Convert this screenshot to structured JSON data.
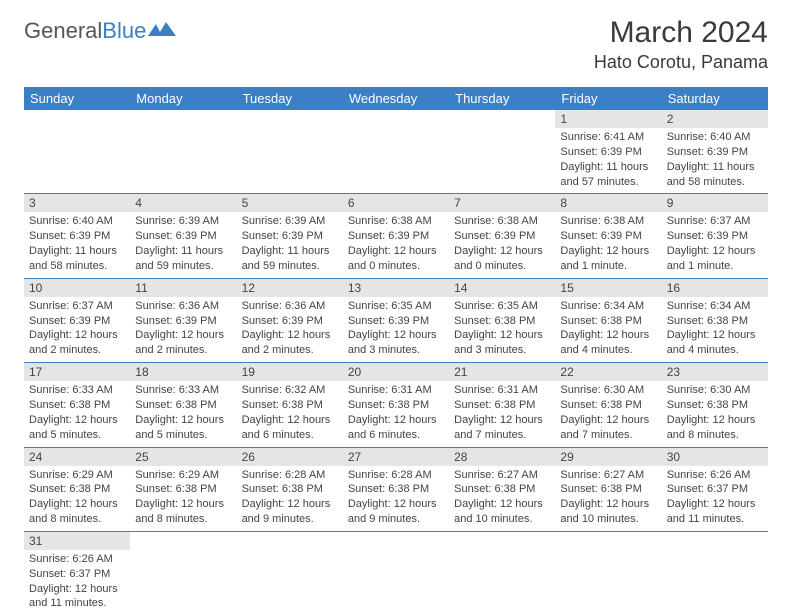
{
  "logo": {
    "text1": "General",
    "text2": "Blue"
  },
  "title": "March 2024",
  "location": "Hato Corotu, Panama",
  "colors": {
    "header_bg": "#3b7fc4",
    "header_text": "#ffffff",
    "daynum_bg": "#e5e5e5",
    "border": "#3b7fc4",
    "text": "#444444"
  },
  "weekdays": [
    "Sunday",
    "Monday",
    "Tuesday",
    "Wednesday",
    "Thursday",
    "Friday",
    "Saturday"
  ],
  "weeks": [
    [
      null,
      null,
      null,
      null,
      null,
      {
        "n": "1",
        "sr": "Sunrise: 6:41 AM",
        "ss": "Sunset: 6:39 PM",
        "dl": "Daylight: 11 hours and 57 minutes."
      },
      {
        "n": "2",
        "sr": "Sunrise: 6:40 AM",
        "ss": "Sunset: 6:39 PM",
        "dl": "Daylight: 11 hours and 58 minutes."
      }
    ],
    [
      {
        "n": "3",
        "sr": "Sunrise: 6:40 AM",
        "ss": "Sunset: 6:39 PM",
        "dl": "Daylight: 11 hours and 58 minutes."
      },
      {
        "n": "4",
        "sr": "Sunrise: 6:39 AM",
        "ss": "Sunset: 6:39 PM",
        "dl": "Daylight: 11 hours and 59 minutes."
      },
      {
        "n": "5",
        "sr": "Sunrise: 6:39 AM",
        "ss": "Sunset: 6:39 PM",
        "dl": "Daylight: 11 hours and 59 minutes."
      },
      {
        "n": "6",
        "sr": "Sunrise: 6:38 AM",
        "ss": "Sunset: 6:39 PM",
        "dl": "Daylight: 12 hours and 0 minutes."
      },
      {
        "n": "7",
        "sr": "Sunrise: 6:38 AM",
        "ss": "Sunset: 6:39 PM",
        "dl": "Daylight: 12 hours and 0 minutes."
      },
      {
        "n": "8",
        "sr": "Sunrise: 6:38 AM",
        "ss": "Sunset: 6:39 PM",
        "dl": "Daylight: 12 hours and 1 minute."
      },
      {
        "n": "9",
        "sr": "Sunrise: 6:37 AM",
        "ss": "Sunset: 6:39 PM",
        "dl": "Daylight: 12 hours and 1 minute."
      }
    ],
    [
      {
        "n": "10",
        "sr": "Sunrise: 6:37 AM",
        "ss": "Sunset: 6:39 PM",
        "dl": "Daylight: 12 hours and 2 minutes."
      },
      {
        "n": "11",
        "sr": "Sunrise: 6:36 AM",
        "ss": "Sunset: 6:39 PM",
        "dl": "Daylight: 12 hours and 2 minutes."
      },
      {
        "n": "12",
        "sr": "Sunrise: 6:36 AM",
        "ss": "Sunset: 6:39 PM",
        "dl": "Daylight: 12 hours and 2 minutes."
      },
      {
        "n": "13",
        "sr": "Sunrise: 6:35 AM",
        "ss": "Sunset: 6:39 PM",
        "dl": "Daylight: 12 hours and 3 minutes."
      },
      {
        "n": "14",
        "sr": "Sunrise: 6:35 AM",
        "ss": "Sunset: 6:38 PM",
        "dl": "Daylight: 12 hours and 3 minutes."
      },
      {
        "n": "15",
        "sr": "Sunrise: 6:34 AM",
        "ss": "Sunset: 6:38 PM",
        "dl": "Daylight: 12 hours and 4 minutes."
      },
      {
        "n": "16",
        "sr": "Sunrise: 6:34 AM",
        "ss": "Sunset: 6:38 PM",
        "dl": "Daylight: 12 hours and 4 minutes."
      }
    ],
    [
      {
        "n": "17",
        "sr": "Sunrise: 6:33 AM",
        "ss": "Sunset: 6:38 PM",
        "dl": "Daylight: 12 hours and 5 minutes."
      },
      {
        "n": "18",
        "sr": "Sunrise: 6:33 AM",
        "ss": "Sunset: 6:38 PM",
        "dl": "Daylight: 12 hours and 5 minutes."
      },
      {
        "n": "19",
        "sr": "Sunrise: 6:32 AM",
        "ss": "Sunset: 6:38 PM",
        "dl": "Daylight: 12 hours and 6 minutes."
      },
      {
        "n": "20",
        "sr": "Sunrise: 6:31 AM",
        "ss": "Sunset: 6:38 PM",
        "dl": "Daylight: 12 hours and 6 minutes."
      },
      {
        "n": "21",
        "sr": "Sunrise: 6:31 AM",
        "ss": "Sunset: 6:38 PM",
        "dl": "Daylight: 12 hours and 7 minutes."
      },
      {
        "n": "22",
        "sr": "Sunrise: 6:30 AM",
        "ss": "Sunset: 6:38 PM",
        "dl": "Daylight: 12 hours and 7 minutes."
      },
      {
        "n": "23",
        "sr": "Sunrise: 6:30 AM",
        "ss": "Sunset: 6:38 PM",
        "dl": "Daylight: 12 hours and 8 minutes."
      }
    ],
    [
      {
        "n": "24",
        "sr": "Sunrise: 6:29 AM",
        "ss": "Sunset: 6:38 PM",
        "dl": "Daylight: 12 hours and 8 minutes."
      },
      {
        "n": "25",
        "sr": "Sunrise: 6:29 AM",
        "ss": "Sunset: 6:38 PM",
        "dl": "Daylight: 12 hours and 8 minutes."
      },
      {
        "n": "26",
        "sr": "Sunrise: 6:28 AM",
        "ss": "Sunset: 6:38 PM",
        "dl": "Daylight: 12 hours and 9 minutes."
      },
      {
        "n": "27",
        "sr": "Sunrise: 6:28 AM",
        "ss": "Sunset: 6:38 PM",
        "dl": "Daylight: 12 hours and 9 minutes."
      },
      {
        "n": "28",
        "sr": "Sunrise: 6:27 AM",
        "ss": "Sunset: 6:38 PM",
        "dl": "Daylight: 12 hours and 10 minutes."
      },
      {
        "n": "29",
        "sr": "Sunrise: 6:27 AM",
        "ss": "Sunset: 6:38 PM",
        "dl": "Daylight: 12 hours and 10 minutes."
      },
      {
        "n": "30",
        "sr": "Sunrise: 6:26 AM",
        "ss": "Sunset: 6:37 PM",
        "dl": "Daylight: 12 hours and 11 minutes."
      }
    ],
    [
      {
        "n": "31",
        "sr": "Sunrise: 6:26 AM",
        "ss": "Sunset: 6:37 PM",
        "dl": "Daylight: 12 hours and 11 minutes."
      },
      null,
      null,
      null,
      null,
      null,
      null
    ]
  ]
}
